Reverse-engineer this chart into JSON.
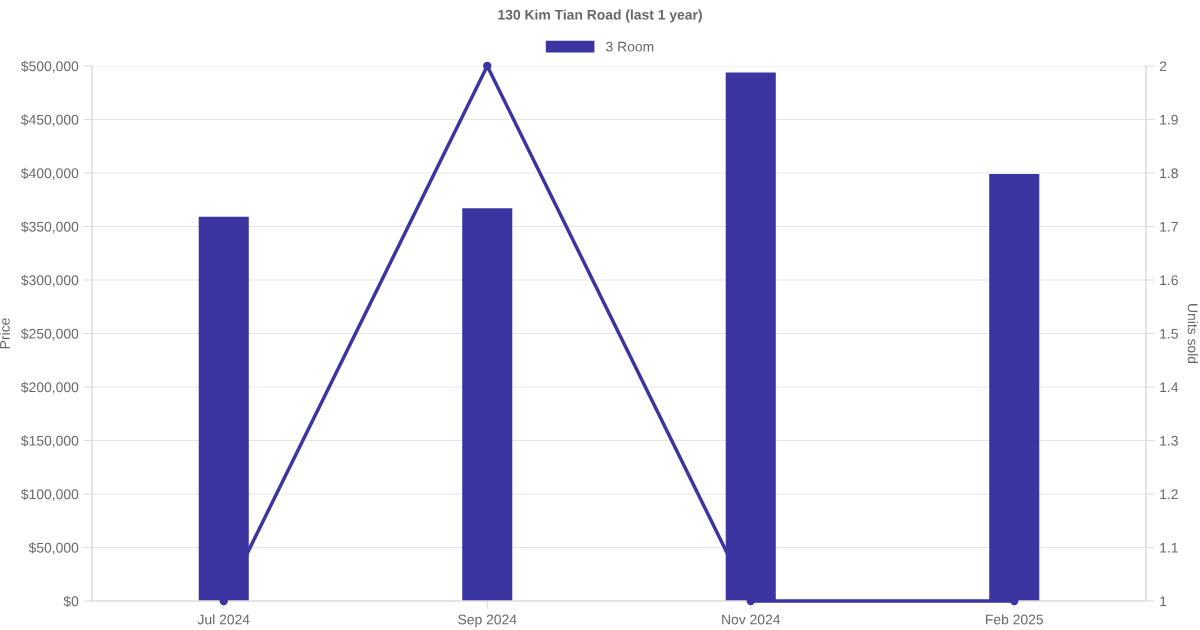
{
  "chart_data": {
    "type": "bar",
    "title": "130 Kim Tian Road (last 1 year)",
    "ylabel": "Price",
    "y2label": "Units sold",
    "categories": [
      "Jul 2024",
      "Sep 2024",
      "Nov 2024",
      "Feb 2025"
    ],
    "series": [
      {
        "name": "3 Room",
        "color": "#3a35a0",
        "values": [
          359000,
          367000,
          494000,
          399000
        ]
      },
      {
        "type": "line",
        "axis": "y2",
        "color": "#3a35a0",
        "values": [
          1,
          2,
          1,
          1
        ]
      }
    ],
    "ylim": [
      0,
      500000
    ],
    "yticks": [
      {
        "value": 0,
        "label": "$0"
      },
      {
        "value": 50000,
        "label": "$50,000"
      },
      {
        "value": 100000,
        "label": "$100,000"
      },
      {
        "value": 150000,
        "label": "$150,000"
      },
      {
        "value": 200000,
        "label": "$200,000"
      },
      {
        "value": 250000,
        "label": "$250,000"
      },
      {
        "value": 300000,
        "label": "$300,000"
      },
      {
        "value": 350000,
        "label": "$350,000"
      },
      {
        "value": 400000,
        "label": "$400,000"
      },
      {
        "value": 450000,
        "label": "$450,000"
      },
      {
        "value": 500000,
        "label": "$500,000"
      }
    ],
    "y2lim": [
      1,
      2
    ],
    "y2ticks": [
      1,
      1.1,
      1.2,
      1.3,
      1.4,
      1.5,
      1.6,
      1.7,
      1.8,
      1.9,
      2
    ],
    "grid": "y",
    "legend": "top",
    "marker": "circle",
    "line_style": "solid"
  }
}
